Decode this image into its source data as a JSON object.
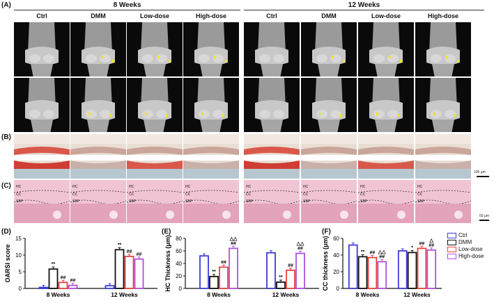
{
  "panel_labels": {
    "a": "(A)",
    "b": "(B)",
    "c": "(C)",
    "d": "(D)",
    "e": "(E)",
    "f": "(F)"
  },
  "groups": [
    "8 Weeks",
    "12 Weeks"
  ],
  "columns": [
    "Ctrl",
    "DMM",
    "Low-dose",
    "High-dose",
    "Ctrl",
    "DMM",
    "Low-dose",
    "High-dose"
  ],
  "zone_labels": {
    "hc": "HC",
    "cc": "CC",
    "sbp": "SBP"
  },
  "scale_bars": {
    "b": "100 μm",
    "c": "50 μm"
  },
  "legend": [
    "Ctrl",
    "DMM",
    "Low-dose",
    "High-dose"
  ],
  "colors": {
    "Ctrl": "#3b3bd6",
    "DMM": "#111111",
    "Low-dose": "#e8433b",
    "High-dose": "#b04fe0",
    "arrow": "#f2e21d"
  },
  "chart_data": [
    {
      "type": "bar",
      "panel": "D",
      "ylabel": "OARSI score",
      "ylim": [
        0,
        15
      ],
      "yticks": [
        0,
        5,
        10,
        15
      ],
      "categories": [
        "8 Weeks",
        "12 Weeks"
      ],
      "series": [
        {
          "name": "Ctrl",
          "values": [
            0.3,
            0.8
          ]
        },
        {
          "name": "DMM",
          "values": [
            5.8,
            11.6
          ]
        },
        {
          "name": "Low-dose",
          "values": [
            1.8,
            9.6
          ]
        },
        {
          "name": "High-dose",
          "values": [
            0.9,
            8.8
          ]
        }
      ],
      "annotations": [
        [
          "",
          "**",
          "##",
          "##"
        ],
        [
          "",
          "**",
          "##",
          "##"
        ]
      ]
    },
    {
      "type": "bar",
      "panel": "E",
      "ylabel": "HC Thickness (μm)",
      "ylim": [
        0,
        80
      ],
      "yticks": [
        0,
        20,
        40,
        60,
        80
      ],
      "categories": [
        "8 Weeks",
        "12 Weeks"
      ],
      "series": [
        {
          "name": "Ctrl",
          "values": [
            52,
            57
          ]
        },
        {
          "name": "DMM",
          "values": [
            19,
            10
          ]
        },
        {
          "name": "Low-dose",
          "values": [
            34,
            29
          ]
        },
        {
          "name": "High-dose",
          "values": [
            64,
            56
          ]
        }
      ],
      "annotations": [
        [
          "",
          "**",
          "##",
          "△△\n##"
        ],
        [
          "",
          "**",
          "##",
          "△△\n##"
        ]
      ]
    },
    {
      "type": "bar",
      "panel": "F",
      "ylabel": "CC thickness (μm)",
      "ylim": [
        0,
        60
      ],
      "yticks": [
        0,
        20,
        40,
        60
      ],
      "categories": [
        "8 Weeks",
        "12 Weeks"
      ],
      "series": [
        {
          "name": "Ctrl",
          "values": [
            52,
            45
          ]
        },
        {
          "name": "DMM",
          "values": [
            38,
            43
          ]
        },
        {
          "name": "Low-dose",
          "values": [
            37,
            48
          ]
        },
        {
          "name": "High-dose",
          "values": [
            32,
            46
          ]
        }
      ],
      "annotations": [
        [
          "",
          "**",
          "##",
          "△△\n##"
        ],
        [
          "",
          "*",
          "##",
          "△\n##"
        ]
      ]
    }
  ]
}
